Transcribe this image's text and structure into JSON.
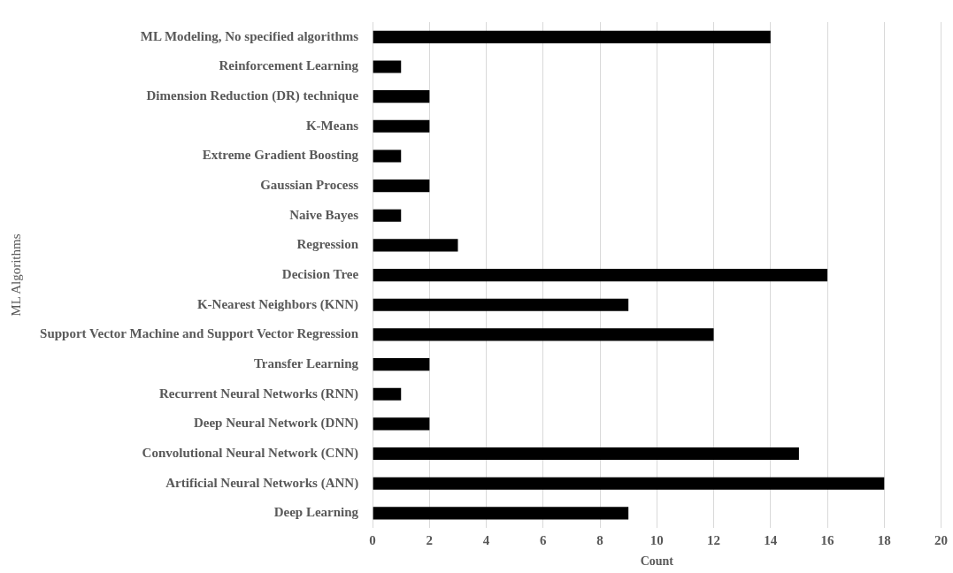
{
  "chart_data": {
    "type": "bar",
    "orientation": "horizontal",
    "categories": [
      "ML Modeling, No specified algorithms",
      "Reinforcement Learning",
      "Dimension Reduction (DR) technique",
      "K-Means",
      "Extreme Gradient Boosting",
      "Gaussian Process",
      "Naive Bayes",
      "Regression",
      "Decision Tree",
      "K-Nearest Neighbors (KNN)",
      "Support Vector Machine and Support Vector Regression",
      "Transfer Learning",
      "Recurrent Neural Networks (RNN)",
      "Deep Neural Network (DNN)",
      "Convolutional Neural Network (CNN)",
      "Artificial Neural Networks (ANN)",
      "Deep Learning"
    ],
    "values": [
      14,
      1,
      2,
      2,
      1,
      2,
      1,
      3,
      16,
      9,
      12,
      2,
      1,
      2,
      15,
      18,
      9
    ],
    "color": "#000000",
    "xlabel": "Count",
    "ylabel": "ML Algorithms",
    "xlim": [
      0,
      20
    ],
    "xticks": [
      0,
      2,
      4,
      6,
      8,
      10,
      12,
      14,
      16,
      18,
      20
    ],
    "grid": "x",
    "legend": false
  }
}
